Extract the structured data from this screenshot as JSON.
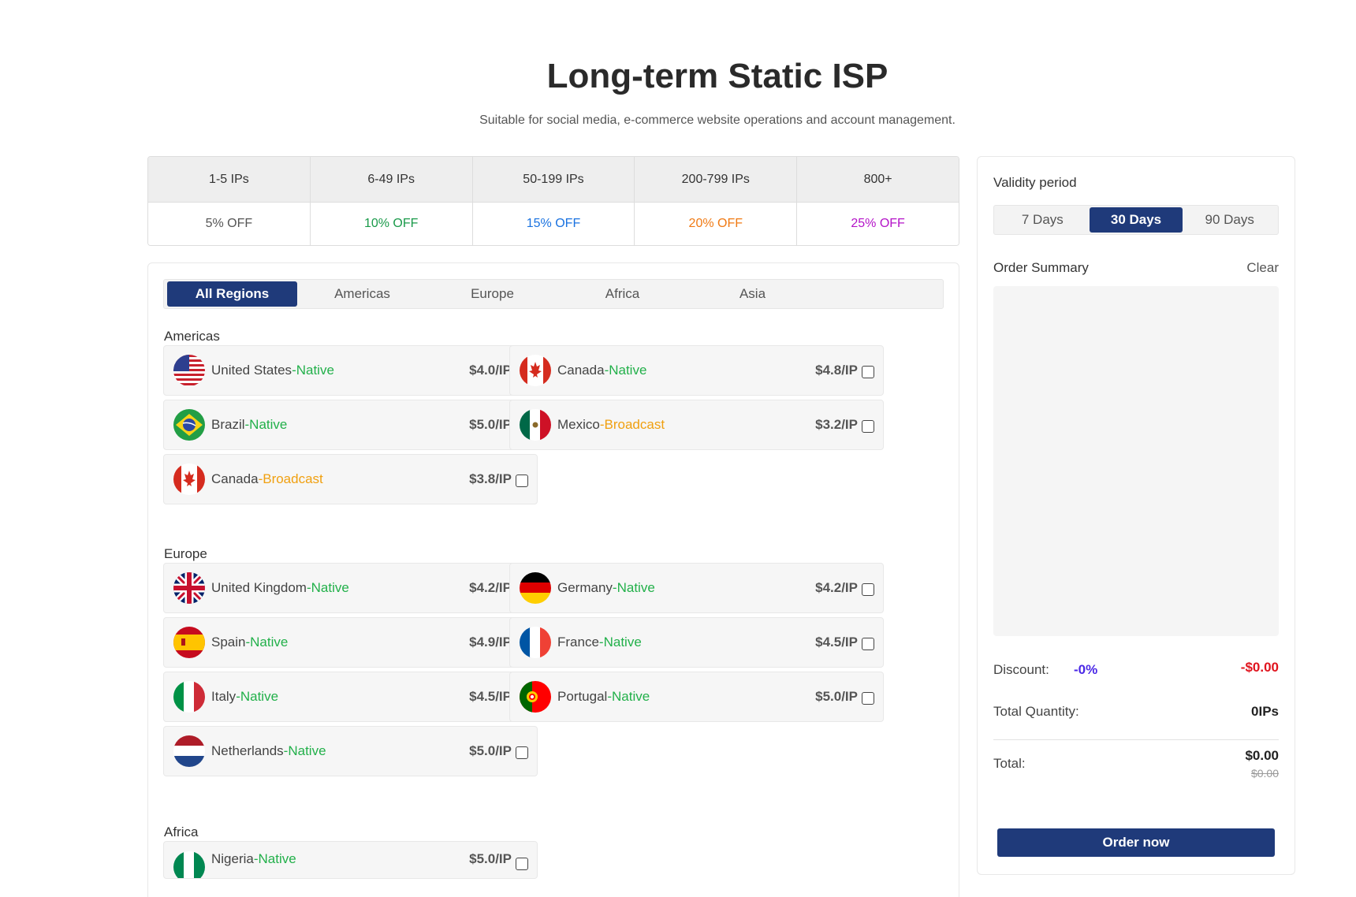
{
  "header": {
    "title": "Long-term Static ISP",
    "subtitle": "Suitable for social media, e-commerce website operations and account management."
  },
  "tiers": [
    {
      "range": "1-5 IPs",
      "off": "5% OFF",
      "color": "#555555"
    },
    {
      "range": "6-49 IPs",
      "off": "10% OFF",
      "color": "#1a9a4a"
    },
    {
      "range": "50-199 IPs",
      "off": "15% OFF",
      "color": "#1a72e0"
    },
    {
      "range": "200-799 IPs",
      "off": "20% OFF",
      "color": "#f07a14"
    },
    {
      "range": "800+",
      "off": "25% OFF",
      "color": "#b414c8"
    }
  ],
  "region_tabs": [
    "All Regions",
    "Americas",
    "Europe",
    "Africa",
    "Asia"
  ],
  "active_region_tab": "All Regions",
  "sections": [
    {
      "label": "Americas",
      "items": [
        {
          "name": "United States",
          "type": "-Native",
          "price": "$4.0/IP",
          "flag": "us-flag-icon"
        },
        {
          "name": "Canada",
          "type": "-Native",
          "price": "$4.8/IP",
          "flag": "canada-flag-icon"
        },
        {
          "name": "Brazil",
          "type": "-Native",
          "price": "$5.0/IP",
          "flag": "brazil-flag-icon"
        },
        {
          "name": "Mexico",
          "type": "-Broadcast",
          "price": "$3.2/IP",
          "flag": "mexico-flag-icon"
        },
        {
          "name": "Canada",
          "type": "-Broadcast",
          "price": "$3.8/IP",
          "flag": "canada-flag-icon"
        }
      ]
    },
    {
      "label": "Europe",
      "items": [
        {
          "name": "United Kingdom",
          "type": "-Native",
          "price": "$4.2/IP",
          "flag": "uk-flag-icon"
        },
        {
          "name": "Germany",
          "type": "-Native",
          "price": "$4.2/IP",
          "flag": "germany-flag-icon"
        },
        {
          "name": "Spain",
          "type": "-Native",
          "price": "$4.9/IP",
          "flag": "spain-flag-icon"
        },
        {
          "name": "France",
          "type": "-Native",
          "price": "$4.5/IP",
          "flag": "france-flag-icon"
        },
        {
          "name": "Italy",
          "type": "-Native",
          "price": "$4.5/IP",
          "flag": "italy-flag-icon"
        },
        {
          "name": "Portugal",
          "type": "-Native",
          "price": "$5.0/IP",
          "flag": "portugal-flag-icon"
        },
        {
          "name": "Netherlands",
          "type": "-Native",
          "price": "$5.0/IP",
          "flag": "netherlands-flag-icon"
        }
      ]
    },
    {
      "label": "Africa",
      "items": [
        {
          "name": "Nigeria",
          "type": "-Native",
          "price": "$5.0/IP",
          "flag": "nigeria-flag-icon"
        }
      ]
    }
  ],
  "side": {
    "validity_label": "Validity period",
    "validity_tabs": [
      "7 Days",
      "30 Days",
      "90 Days"
    ],
    "active_validity": "30 Days",
    "order_summary_label": "Order Summary",
    "clear_label": "Clear",
    "discount_label": "Discount:",
    "discount_pct": "-0%",
    "discount_amount": "-$0.00",
    "quantity_label": "Total Quantity:",
    "quantity_value": "0IPs",
    "total_label": "Total:",
    "total_value": "$0.00",
    "total_original": "$0.00",
    "order_button": "Order now"
  },
  "colors": {
    "accent": "#1f3a7a",
    "native": "#22b04a",
    "broadcast": "#f0a010",
    "discount_pct": "#4a28e6",
    "discount_amount": "#e0141e"
  }
}
